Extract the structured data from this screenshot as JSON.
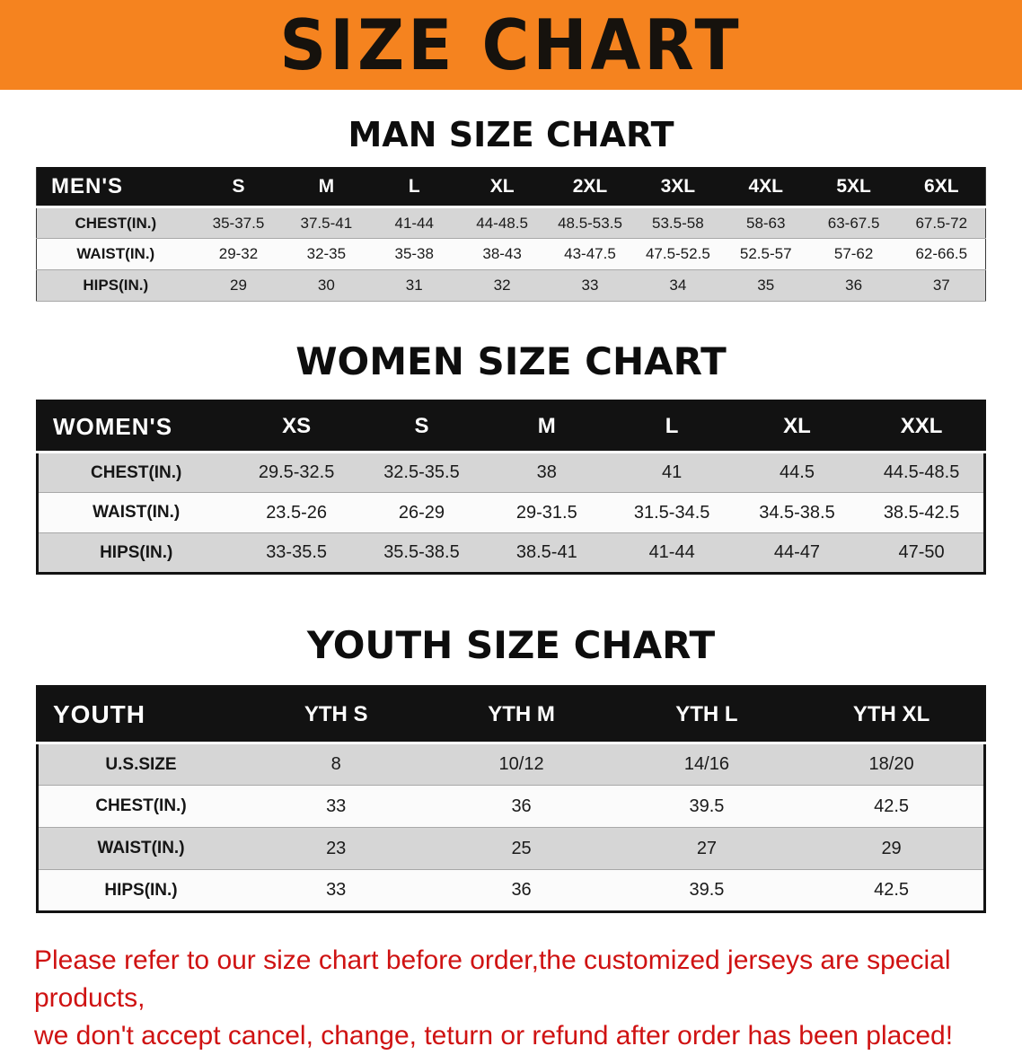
{
  "banner": {
    "title": "SIZE CHART",
    "bg_color": "#f5831f",
    "text_color": "#16120d"
  },
  "colors": {
    "banner_orange": "#f5831f",
    "table_header_black": "#121212",
    "row_gray": "#d6d6d6",
    "row_white": "#fbfbfb",
    "disclaimer_red": "#cf1212"
  },
  "sections": [
    {
      "id": "men",
      "heading": "MAN SIZE CHART",
      "table": {
        "header": [
          "MEN'S",
          "S",
          "M",
          "L",
          "XL",
          "2XL",
          "3XL",
          "4XL",
          "5XL",
          "6XL"
        ],
        "rows": [
          [
            "CHEST(IN.)",
            "35-37.5",
            "37.5-41",
            "41-44",
            "44-48.5",
            "48.5-53.5",
            "53.5-58",
            "58-63",
            "63-67.5",
            "67.5-72"
          ],
          [
            "WAIST(IN.)",
            "29-32",
            "32-35",
            "35-38",
            "38-43",
            "43-47.5",
            "47.5-52.5",
            "52.5-57",
            "57-62",
            "62-66.5"
          ],
          [
            "HIPS(IN.)",
            "29",
            "30",
            "31",
            "32",
            "33",
            "34",
            "35",
            "36",
            "37"
          ]
        ]
      }
    },
    {
      "id": "women",
      "heading": "WOMEN SIZE CHART",
      "table": {
        "header": [
          "WOMEN'S",
          "XS",
          "S",
          "M",
          "L",
          "XL",
          "XXL"
        ],
        "rows": [
          [
            "CHEST(IN.)",
            "29.5-32.5",
            "32.5-35.5",
            "38",
            "41",
            "44.5",
            "44.5-48.5"
          ],
          [
            "WAIST(IN.)",
            "23.5-26",
            "26-29",
            "29-31.5",
            "31.5-34.5",
            "34.5-38.5",
            "38.5-42.5"
          ],
          [
            "HIPS(IN.)",
            "33-35.5",
            "35.5-38.5",
            "38.5-41",
            "41-44",
            "44-47",
            "47-50"
          ]
        ]
      }
    },
    {
      "id": "youth",
      "heading": "YOUTH SIZE CHART",
      "table": {
        "header": [
          "YOUTH",
          "YTH S",
          "YTH M",
          "YTH L",
          "YTH XL"
        ],
        "rows": [
          [
            "U.S.SIZE",
            "8",
            "10/12",
            "14/16",
            "18/20"
          ],
          [
            "CHEST(IN.)",
            "33",
            "36",
            "39.5",
            "42.5"
          ],
          [
            "WAIST(IN.)",
            "23",
            "25",
            "27",
            "29"
          ],
          [
            "HIPS(IN.)",
            "33",
            "36",
            "39.5",
            "42.5"
          ]
        ]
      }
    }
  ],
  "disclaimer": {
    "line1": "Please refer to our size chart before order,the customized jerseys are special products,",
    "line2": "we don't accept cancel, change, teturn or refund after order has been placed!"
  }
}
